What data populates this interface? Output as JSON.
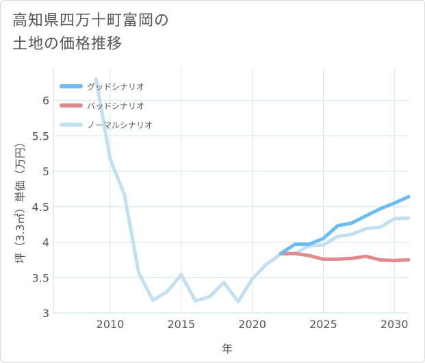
{
  "chart_data": {
    "type": "line",
    "title_lines": [
      "高知県四万十町富岡の",
      "土地の価格推移"
    ],
    "xlabel": "年",
    "ylabel": "坪（3.3㎡）単価（万円）",
    "xlim": [
      2006,
      2031
    ],
    "ylim": [
      3,
      6.45
    ],
    "x_ticks": [
      2010,
      2015,
      2020,
      2025,
      2030
    ],
    "y_ticks": [
      3,
      3.5,
      4,
      4.5,
      5,
      5.5,
      6
    ],
    "y_tick_labels": [
      "3",
      "3.5",
      "4",
      "4.5",
      "5",
      "5.5",
      "6"
    ],
    "x_tick_labels": [
      "2010",
      "2015",
      "2020",
      "2025",
      "2030"
    ],
    "grid": true,
    "legend_position": "top-left",
    "series": [
      {
        "name": "グッドシナリオ",
        "color": "#6cbcef",
        "x": [
          2022,
          2023,
          2024,
          2025,
          2026,
          2027,
          2028,
          2029,
          2030,
          2031
        ],
        "values": [
          3.84,
          3.97,
          3.97,
          4.05,
          4.23,
          4.27,
          4.37,
          4.47,
          4.55,
          4.64
        ]
      },
      {
        "name": "バッドシナリオ",
        "color": "#e08a8f",
        "x": [
          2022,
          2023,
          2024,
          2025,
          2026,
          2027,
          2028,
          2029,
          2030,
          2031
        ],
        "values": [
          3.84,
          3.84,
          3.81,
          3.76,
          3.76,
          3.77,
          3.8,
          3.75,
          3.74,
          3.75
        ]
      },
      {
        "name": "ノーマルシナリオ",
        "color": "#c3dff0",
        "x": [
          2009,
          2010,
          2011,
          2012,
          2013,
          2014,
          2015,
          2016,
          2017,
          2018,
          2019,
          2020,
          2021,
          2022,
          2023,
          2024,
          2025,
          2026,
          2027,
          2028,
          2029,
          2030,
          2031
        ],
        "values": [
          6.3,
          5.17,
          4.67,
          3.57,
          3.18,
          3.3,
          3.54,
          3.17,
          3.23,
          3.43,
          3.16,
          3.48,
          3.69,
          3.83,
          3.84,
          3.95,
          3.96,
          4.08,
          4.11,
          4.19,
          4.21,
          4.33,
          4.34
        ]
      }
    ]
  }
}
